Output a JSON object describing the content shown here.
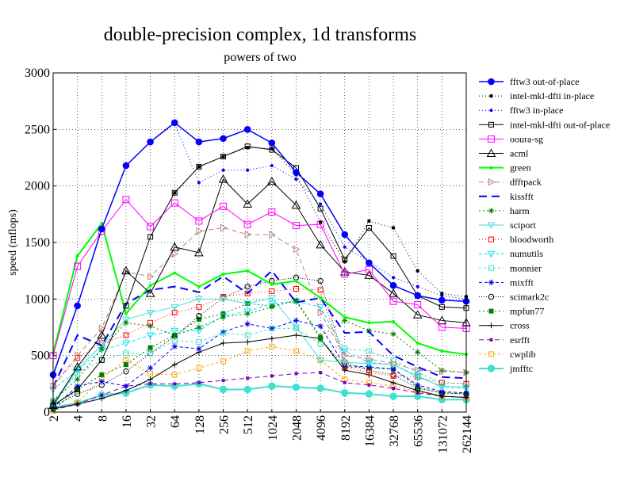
{
  "chart_data": {
    "type": "line",
    "title": "double-precision complex, 1d transforms",
    "subtitle": "powers of two",
    "xlabel": "",
    "ylabel": "speed (mflops)",
    "ylim": [
      0,
      3000
    ],
    "yticks": [
      0,
      500,
      1000,
      1500,
      2000,
      2500,
      3000
    ],
    "grid": true,
    "legend_placement": "right",
    "categories": [
      "2",
      "4",
      "8",
      "16",
      "32",
      "64",
      "128",
      "256",
      "512",
      "1024",
      "2048",
      "4096",
      "8192",
      "16384",
      "32768",
      "65536",
      "131072",
      "262144"
    ],
    "series": [
      {
        "name": "fftw3 out-of-place",
        "color": "#0000ff",
        "dash": "",
        "marker": "circle-filled",
        "width": 1.5,
        "values": [
          330,
          940,
          1620,
          2180,
          2390,
          2560,
          2390,
          2420,
          2500,
          2380,
          2120,
          1930,
          1570,
          1320,
          1120,
          1030,
          990,
          980
        ]
      },
      {
        "name": "intel-mkl-dfti in-place",
        "color": "#000000",
        "dash": "1,3",
        "marker": "square-filled-small",
        "width": 1,
        "values": [
          null,
          null,
          null,
          null,
          null,
          1940,
          2170,
          2260,
          2340,
          2330,
          2100,
          1680,
          1330,
          1690,
          1630,
          1250,
          1050,
          1020
        ]
      },
      {
        "name": "fftw3 in-place",
        "color": "#0000ff",
        "dash": "1,3",
        "marker": "dot",
        "width": 1,
        "values": [
          310,
          950,
          1620,
          2180,
          2390,
          2550,
          2030,
          2140,
          2140,
          2180,
          2060,
          1840,
          1460,
          1330,
          1190,
          1110,
          1030,
          1000
        ]
      },
      {
        "name": "intel-mkl-dfti out-of-place",
        "color": "#000000",
        "dash": "",
        "marker": "square-open",
        "width": 1,
        "values": [
          60,
          200,
          460,
          940,
          1550,
          1940,
          2170,
          2260,
          2350,
          2320,
          2160,
          1800,
          1350,
          1630,
          1380,
          1030,
          930,
          920
        ]
      },
      {
        "name": "ooura-sg",
        "color": "#ff00ff",
        "dash": "",
        "marker": "square-open-large",
        "width": 1,
        "values": [
          500,
          1290,
          1600,
          1880,
          1640,
          1850,
          1690,
          1820,
          1660,
          1770,
          1650,
          1660,
          1220,
          1260,
          980,
          950,
          750,
          740
        ]
      },
      {
        "name": "acml",
        "color": "#000000",
        "dash": "",
        "marker": "triangle-open",
        "width": 1,
        "values": [
          60,
          400,
          680,
          1250,
          1050,
          1460,
          1410,
          2060,
          1840,
          2040,
          1830,
          1480,
          1240,
          1210,
          1050,
          860,
          810,
          790
        ]
      },
      {
        "name": "green",
        "color": "#00ff00",
        "dash": "",
        "marker": "dot",
        "width": 2,
        "values": [
          520,
          1380,
          1670,
          870,
          1120,
          1230,
          1110,
          1220,
          1250,
          1130,
          1160,
          1010,
          840,
          790,
          800,
          610,
          540,
          510
        ]
      },
      {
        "name": "dfftpack",
        "color": "#c08080",
        "dash": "6,4",
        "marker": "triangle-right-open",
        "width": 1,
        "values": [
          230,
          500,
          740,
          1240,
          1200,
          1400,
          1600,
          1630,
          1570,
          1570,
          1440,
          880,
          500,
          470,
          430,
          370,
          360,
          350
        ]
      },
      {
        "name": "kissfft",
        "color": "#0000ff",
        "dash": "10,6",
        "marker": "",
        "width": 2,
        "values": [
          220,
          680,
          590,
          960,
          1080,
          1110,
          1060,
          1200,
          1050,
          1250,
          970,
          1010,
          700,
          710,
          500,
          400,
          310,
          300
        ]
      },
      {
        "name": "harm",
        "color": "#008000",
        "dash": "2,3",
        "marker": "star",
        "width": 1,
        "values": [
          100,
          290,
          560,
          790,
          760,
          680,
          750,
          840,
          870,
          930,
          990,
          670,
          810,
          720,
          690,
          530,
          370,
          350
        ]
      },
      {
        "name": "sciport",
        "color": "#40e0d0",
        "dash": "",
        "marker": "triangle-down-open",
        "width": 1,
        "values": [
          50,
          380,
          590,
          820,
          880,
          930,
          1000,
          1000,
          960,
          1010,
          750,
          460,
          440,
          430,
          420,
          310,
          230,
          220
        ]
      },
      {
        "name": "bloodworth",
        "color": "#ff0000",
        "dash": "1,3",
        "marker": "square-open",
        "width": 1,
        "values": [
          230,
          480,
          610,
          680,
          790,
          880,
          930,
          1020,
          1050,
          1070,
          1090,
          1080,
          400,
          350,
          320,
          310,
          260,
          250
        ]
      },
      {
        "name": "numutils",
        "color": "#00e5ff",
        "dash": "4,3",
        "marker": "triangle-down-open",
        "width": 1,
        "values": [
          200,
          370,
          550,
          610,
          680,
          720,
          720,
          850,
          890,
          960,
          980,
          930,
          540,
          440,
          420,
          320,
          220,
          210
        ]
      },
      {
        "name": "monnier",
        "color": "#40e0d0",
        "dash": "3,3",
        "marker": "square-open",
        "width": 1,
        "values": [
          100,
          340,
          460,
          520,
          520,
          630,
          620,
          700,
          680,
          740,
          740,
          600,
          560,
          540,
          460,
          350,
          260,
          250
        ]
      },
      {
        "name": "mixfft",
        "color": "#0000ff",
        "dash": "4,3",
        "marker": "star",
        "width": 1,
        "values": [
          40,
          230,
          270,
          230,
          390,
          580,
          560,
          710,
          780,
          740,
          810,
          760,
          410,
          400,
          380,
          240,
          180,
          170
        ]
      },
      {
        "name": "scimark2c",
        "color": "#000000",
        "dash": "1,2",
        "marker": "circle-open",
        "width": 1,
        "values": [
          50,
          160,
          240,
          360,
          520,
          670,
          850,
          1010,
          1110,
          1160,
          1190,
          1160,
          440,
          370,
          330,
          210,
          170,
          160
        ]
      },
      {
        "name": "mpfun77",
        "color": "#008000",
        "dash": "2,3",
        "marker": "square-filled",
        "width": 1,
        "values": [
          20,
          200,
          330,
          420,
          570,
          680,
          820,
          870,
          960,
          940,
          980,
          650,
          400,
          390,
          380,
          220,
          170,
          160
        ]
      },
      {
        "name": "cross",
        "color": "#000000",
        "dash": "",
        "marker": "plus",
        "width": 1,
        "values": [
          30,
          70,
          120,
          190,
          290,
          420,
          530,
          610,
          620,
          650,
          680,
          650,
          370,
          330,
          260,
          190,
          140,
          130
        ]
      },
      {
        "name": "esrfft",
        "color": "#8000c0",
        "dash": "6,4",
        "marker": "square-filled-small",
        "width": 1,
        "values": [
          20,
          70,
          150,
          230,
          250,
          250,
          260,
          280,
          300,
          320,
          340,
          350,
          260,
          240,
          210,
          170,
          140,
          130
        ]
      },
      {
        "name": "cwplib",
        "color": "#ffa500",
        "dash": "3,3",
        "marker": "square-open",
        "width": 1,
        "values": [
          10,
          80,
          300,
          460,
          340,
          330,
          390,
          450,
          540,
          580,
          540,
          460,
          290,
          260,
          230,
          180,
          140,
          130
        ]
      },
      {
        "name": "jmfftc",
        "color": "#40e0d0",
        "dash": "",
        "marker": "circle-filled-large",
        "width": 2,
        "values": [
          40,
          80,
          150,
          170,
          240,
          230,
          250,
          200,
          200,
          230,
          220,
          210,
          170,
          160,
          140,
          140,
          110,
          110
        ]
      }
    ]
  }
}
